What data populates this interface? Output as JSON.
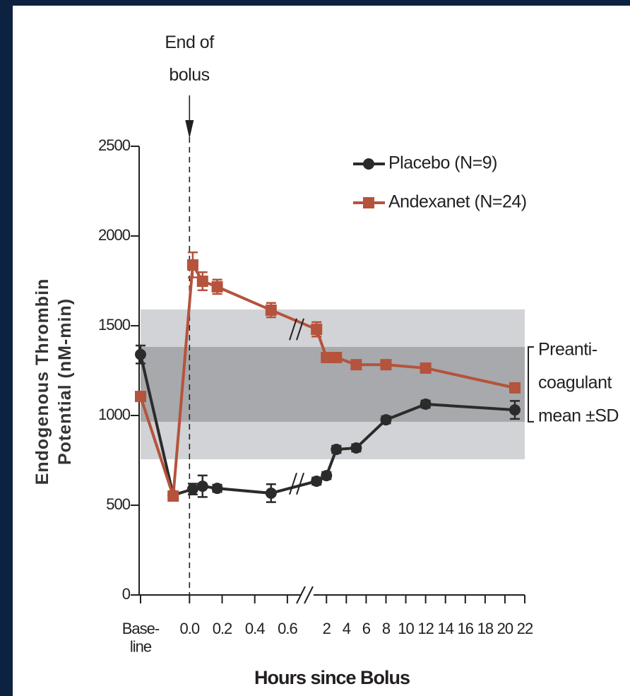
{
  "chart_data": {
    "type": "line",
    "xlabel": "Hours since Bolus",
    "ylabel_lines": [
      "Endogenous Thrombin",
      "Potential (nM-min)"
    ],
    "annotation": {
      "x": 0,
      "lines": [
        "End of",
        "bolus"
      ]
    },
    "xlim": [
      -0.3,
      22
    ],
    "x_break": 0.7,
    "xticks": [
      {
        "value": -0.3,
        "label": "Base-\nline"
      },
      {
        "value": 0,
        "label": "0.0"
      },
      0.2,
      0.4,
      0.6,
      2,
      4,
      6,
      8,
      10,
      12,
      14,
      16,
      18,
      20,
      22
    ],
    "ylim": [
      0,
      2500
    ],
    "yticks": [
      0,
      500,
      1000,
      1500,
      2000,
      2500
    ],
    "reference_band": {
      "label_lines": [
        "Preanti-",
        "coagulant",
        "mean ±SD"
      ],
      "inner": [
        965,
        1382
      ],
      "outer": [
        756,
        1591
      ],
      "inner_color": "#a7a9ac",
      "outer_color": "#d1d3d6"
    },
    "x": [
      -0.3,
      -0.1,
      0.02,
      0.08,
      0.17,
      0.5,
      1,
      2,
      3,
      5,
      8,
      12,
      21
    ],
    "series": [
      {
        "name": "Placebo (N=9)",
        "color": "#2b2b2b",
        "marker": "circle",
        "values": [
          1340,
          556,
          590,
          606,
          594,
          567,
          634,
          665,
          811,
          819,
          976,
          1063,
          1031
        ],
        "errors": [
          50,
          10,
          30,
          60,
          20,
          50,
          20,
          20,
          20,
          20,
          20,
          20,
          50
        ]
      },
      {
        "name": "Andexanet (N=24)",
        "color": "#b5533c",
        "marker": "square",
        "values": [
          1106,
          551,
          1839,
          1748,
          1717,
          1587,
          1480,
          1323,
          1323,
          1283,
          1283,
          1264,
          1154
        ],
        "errors": [
          20,
          10,
          70,
          50,
          40,
          40,
          40,
          20,
          20,
          20,
          20,
          20,
          20
        ]
      }
    ],
    "legend": "top-right"
  }
}
